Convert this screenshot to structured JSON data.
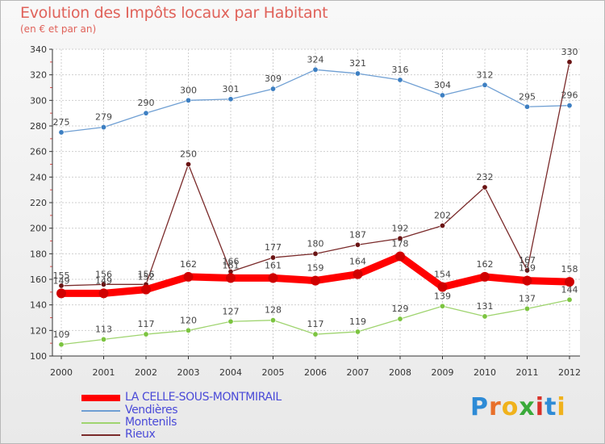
{
  "header": {
    "title": "Evolution des Impôts locaux par Habitant",
    "subtitle": "(en € et par an)"
  },
  "brand": {
    "letters": [
      "P",
      "r",
      "o",
      "x",
      "i",
      "t",
      "i"
    ],
    "colors": [
      "#2e8bd6",
      "#e8702a",
      "#f0b21c",
      "#3aaa3a",
      "#d8322a",
      "#2e8bd6",
      "#f0b21c"
    ]
  },
  "chart_data": {
    "type": "line",
    "title": "Evolution des Impôts locaux par Habitant",
    "subtitle": "(en € et par an)",
    "x": [
      "2000",
      "2001",
      "2002",
      "2003",
      "2004",
      "2005",
      "2006",
      "2007",
      "2008",
      "2009",
      "2010",
      "2011",
      "2012"
    ],
    "ylim": [
      100,
      340
    ],
    "yticks": [
      100,
      120,
      140,
      160,
      180,
      200,
      220,
      240,
      260,
      280,
      300,
      320,
      340
    ],
    "grid": true,
    "legend_position": "bottom-left",
    "series": [
      {
        "name": "LA CELLE-SOUS-MONTMIRAIL",
        "values": [
          149,
          149,
          152,
          162,
          161,
          161,
          159,
          164,
          178,
          154,
          162,
          159,
          158
        ],
        "labels": [
          "149",
          "149",
          "152",
          "162",
          "161",
          "161",
          "159",
          "164",
          "178",
          "154",
          "162",
          "159",
          "158"
        ],
        "color": "#ff0000",
        "marker": "#d00000",
        "width": 9
      },
      {
        "name": "Vendières",
        "values": [
          275,
          279,
          290,
          300,
          301,
          309,
          324,
          321,
          316,
          304,
          312,
          295,
          296
        ],
        "labels": [
          "275",
          "279",
          "290",
          "300",
          "301",
          "309",
          "324",
          "321",
          "316",
          "304",
          "312",
          "295",
          "296"
        ],
        "color": "#6f9fd3",
        "marker": "#3d7fc2",
        "width": 1.3
      },
      {
        "name": "Montenils",
        "values": [
          109,
          113,
          117,
          120,
          127,
          128,
          117,
          119,
          129,
          139,
          131,
          137,
          144
        ],
        "labels": [
          "109",
          "113",
          "117",
          "120",
          "127",
          "128",
          "117",
          "119",
          "129",
          "139",
          "131",
          "137",
          "144"
        ],
        "color": "#9fd46f",
        "marker": "#7cc440",
        "width": 1.3
      },
      {
        "name": "Rieux",
        "values": [
          155,
          156,
          156,
          250,
          166,
          177,
          180,
          187,
          192,
          202,
          232,
          167,
          330
        ],
        "labels": [
          "155",
          "156",
          "156",
          "250",
          "166",
          "177",
          "180",
          "187",
          "192",
          "202",
          "232",
          "167",
          "330"
        ],
        "color": "#7a2a2a",
        "marker": "#6a1414",
        "width": 1.3
      }
    ]
  }
}
